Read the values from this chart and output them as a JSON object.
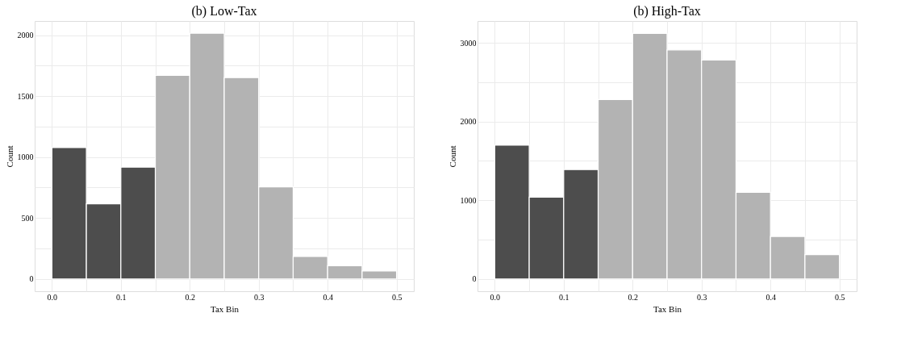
{
  "chart_data": [
    {
      "type": "histogram",
      "title": "(b) Low-Tax",
      "xlabel": "Tax Bin",
      "ylabel": "Count",
      "bins": [
        0,
        0.05,
        0.1,
        0.15,
        0.2,
        0.25,
        0.3,
        0.35,
        0.4,
        0.45,
        0.5
      ],
      "values": [
        1078,
        617,
        917,
        1670,
        2016,
        1652,
        756,
        184,
        108,
        65
      ],
      "colors": [
        "#4d4d4d",
        "#4d4d4d",
        "#4d4d4d",
        "#b3b3b3",
        "#b3b3b3",
        "#b3b3b3",
        "#b3b3b3",
        "#b3b3b3",
        "#b3b3b3",
        "#b3b3b3"
      ],
      "xlim": [
        -0.025,
        0.525
      ],
      "xticks": [
        {
          "value": 0,
          "label": "0.0"
        },
        {
          "value": 0.05,
          "label": null
        },
        {
          "value": 0.1,
          "label": "0.1"
        },
        {
          "value": 0.15,
          "label": null
        },
        {
          "value": 0.2,
          "label": "0.2"
        },
        {
          "value": 0.25,
          "label": null
        },
        {
          "value": 0.3,
          "label": "0.3"
        },
        {
          "value": 0.35,
          "label": null
        },
        {
          "value": 0.4,
          "label": "0.4"
        },
        {
          "value": 0.45,
          "label": null
        },
        {
          "value": 0.5,
          "label": "0.5"
        }
      ],
      "ylim": [
        -101,
        2117
      ],
      "yticks": [
        0,
        {
          "value": 250,
          "label": null
        },
        500,
        {
          "value": 750,
          "label": null
        },
        1000,
        {
          "value": 1250,
          "label": null
        },
        1500,
        {
          "value": 1750,
          "label": null
        },
        2000
      ],
      "grid": true
    },
    {
      "type": "histogram",
      "title": "(b) High-Tax",
      "xlabel": "Tax Bin",
      "ylabel": "Count",
      "bins": [
        0,
        0.05,
        0.1,
        0.15,
        0.2,
        0.25,
        0.3,
        0.35,
        0.4,
        0.45,
        0.5
      ],
      "values": [
        1700,
        1040,
        1390,
        2280,
        3120,
        2910,
        2780,
        1100,
        540,
        310
      ],
      "colors": [
        "#4d4d4d",
        "#4d4d4d",
        "#4d4d4d",
        "#b3b3b3",
        "#b3b3b3",
        "#b3b3b3",
        "#b3b3b3",
        "#b3b3b3",
        "#b3b3b3",
        "#b3b3b3"
      ],
      "xlim": [
        -0.025,
        0.525
      ],
      "xticks": [
        {
          "value": 0,
          "label": "0.0"
        },
        {
          "value": 0.05,
          "label": null
        },
        {
          "value": 0.1,
          "label": "0.1"
        },
        {
          "value": 0.15,
          "label": null
        },
        {
          "value": 0.2,
          "label": "0.2"
        },
        {
          "value": 0.25,
          "label": null
        },
        {
          "value": 0.3,
          "label": "0.3"
        },
        {
          "value": 0.35,
          "label": null
        },
        {
          "value": 0.4,
          "label": "0.4"
        },
        {
          "value": 0.45,
          "label": null
        },
        {
          "value": 0.5,
          "label": "0.5"
        }
      ],
      "ylim": [
        -156,
        3277
      ],
      "yticks": [
        0,
        {
          "value": 500,
          "label": null
        },
        1000,
        {
          "value": 1500,
          "label": null
        },
        2000,
        {
          "value": 2500,
          "label": null
        },
        3000
      ],
      "grid": true
    }
  ]
}
